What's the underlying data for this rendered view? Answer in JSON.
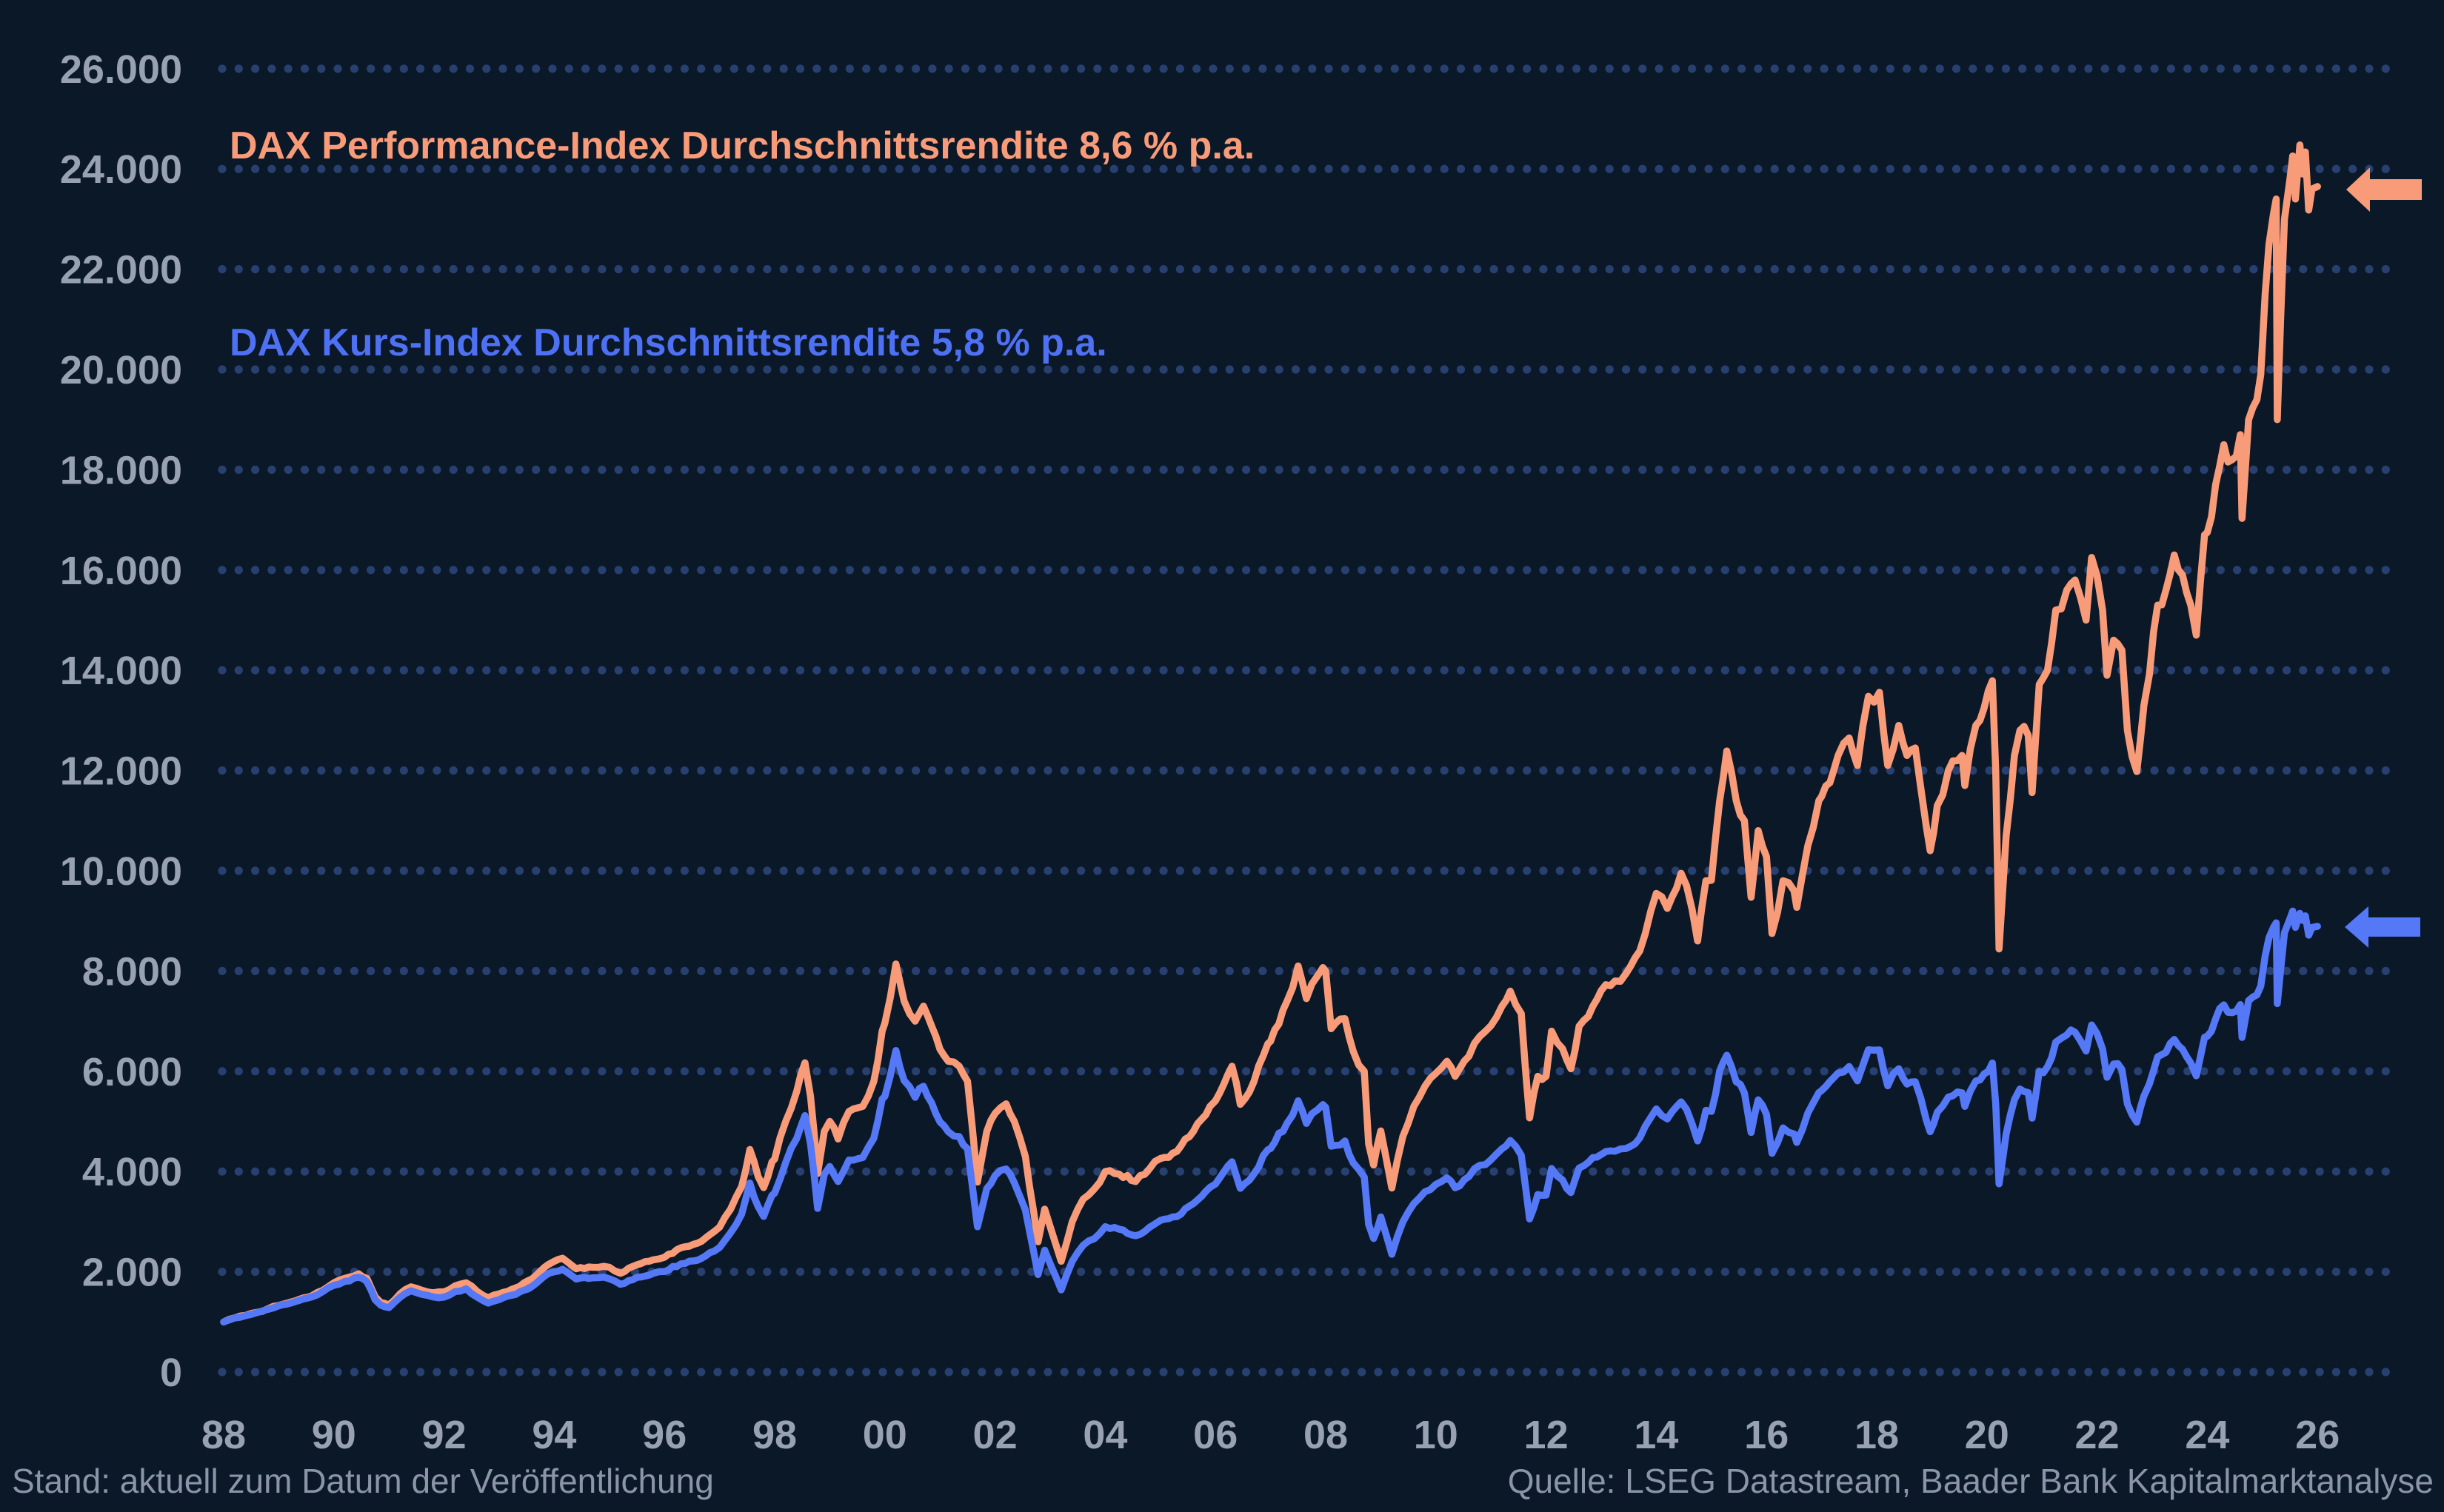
{
  "footer": {
    "left": "Stand: aktuell zum Datum der Veröffentlichung",
    "right": "Quelle: LSEG Datastream, Baader Bank Kapitalmarktanalyse"
  },
  "colors": {
    "background": "#0A1828",
    "grid_dots": "#28406F",
    "tick_text": "#97A1B2",
    "footer_text": "#8A95A7"
  },
  "chart_data": {
    "type": "line",
    "title": "",
    "xlabel": "",
    "ylabel": "",
    "ylim": [
      0,
      26000
    ],
    "x_range": [
      1988,
      2026
    ],
    "grid": "dotted horizontal lines at every 2.000 points",
    "legend_position": "labels inside plot, top-left area",
    "y_tick_labels": [
      "26.000",
      "24.000",
      "22.000",
      "20.000",
      "18.000",
      "16.000",
      "14.000",
      "12.000",
      "10.000",
      "8.000",
      "6.000",
      "4.000",
      "2.000",
      "0"
    ],
    "y_tick_values": [
      26000,
      24000,
      22000,
      20000,
      18000,
      16000,
      14000,
      12000,
      10000,
      8000,
      6000,
      4000,
      2000,
      0
    ],
    "x_tick_labels": [
      "88",
      "90",
      "92",
      "94",
      "96",
      "98",
      "00",
      "02",
      "04",
      "06",
      "08",
      "10",
      "12",
      "14",
      "16",
      "18",
      "20",
      "22",
      "24",
      "26"
    ],
    "x_tick_years": [
      1988,
      1990,
      1992,
      1994,
      1996,
      1998,
      2000,
      2002,
      2004,
      2006,
      2008,
      2010,
      2012,
      2014,
      2016,
      2018,
      2020,
      2022,
      2024,
      2026
    ],
    "series": [
      {
        "id": "performance",
        "label": "DAX Performance-Index Durchschnittsrendite 8,6 % p.a.",
        "avg_return": "8,6 % p.a.",
        "color": "#F89B79",
        "arrow": "left-pointing block arrow at current value ~23.600"
      },
      {
        "id": "kurs",
        "label": "DAX Kurs-Index Durchschnittsrendite 5,8 % p.a.",
        "avg_return": "5,8 % p.a.",
        "color": "#5578F6",
        "arrow": "left-pointing block arrow at current value ~8.900"
      }
    ],
    "points_format": "[year, dax_performance_index, dax_kurs_index]",
    "points": [
      [
        1988.0,
        1000,
        1000
      ],
      [
        1988.2,
        1080,
        1080
      ],
      [
        1988.4,
        1130,
        1125
      ],
      [
        1988.6,
        1190,
        1185
      ],
      [
        1988.8,
        1260,
        1250
      ],
      [
        1989.0,
        1330,
        1320
      ],
      [
        1989.3,
        1420,
        1405
      ],
      [
        1989.6,
        1520,
        1500
      ],
      [
        1989.8,
        1630,
        1605
      ],
      [
        1990.0,
        1780,
        1730
      ],
      [
        1990.2,
        1870,
        1810
      ],
      [
        1990.45,
        1960,
        1890
      ],
      [
        1990.6,
        1870,
        1800
      ],
      [
        1990.75,
        1500,
        1440
      ],
      [
        1990.85,
        1390,
        1335
      ],
      [
        1991.0,
        1340,
        1285
      ],
      [
        1991.2,
        1560,
        1490
      ],
      [
        1991.4,
        1700,
        1620
      ],
      [
        1991.6,
        1630,
        1550
      ],
      [
        1991.8,
        1580,
        1500
      ],
      [
        1992.0,
        1600,
        1495
      ],
      [
        1992.2,
        1720,
        1605
      ],
      [
        1992.4,
        1780,
        1660
      ],
      [
        1992.6,
        1610,
        1495
      ],
      [
        1992.8,
        1480,
        1375
      ],
      [
        1993.0,
        1560,
        1445
      ],
      [
        1993.3,
        1680,
        1550
      ],
      [
        1993.6,
        1860,
        1710
      ],
      [
        1993.9,
        2150,
        1970
      ],
      [
        1994.0,
        2210,
        2000
      ],
      [
        1994.15,
        2270,
        2050
      ],
      [
        1994.4,
        2060,
        1855
      ],
      [
        1994.7,
        2090,
        1880
      ],
      [
        1994.9,
        2110,
        1895
      ],
      [
        1995.0,
        2090,
        1860
      ],
      [
        1995.2,
        1970,
        1750
      ],
      [
        1995.5,
        2140,
        1890
      ],
      [
        1995.8,
        2240,
        1970
      ],
      [
        1996.0,
        2290,
        2005
      ],
      [
        1996.3,
        2480,
        2160
      ],
      [
        1996.6,
        2570,
        2230
      ],
      [
        1996.9,
        2800,
        2410
      ],
      [
        1997.0,
        2890,
        2485
      ],
      [
        1997.2,
        3250,
        2780
      ],
      [
        1997.4,
        3700,
        3150
      ],
      [
        1997.55,
        4440,
        3770
      ],
      [
        1997.7,
        3900,
        3300
      ],
      [
        1997.8,
        3680,
        3105
      ],
      [
        1997.95,
        4190,
        3525
      ],
      [
        1998.0,
        4250,
        3570
      ],
      [
        1998.2,
        5000,
        4180
      ],
      [
        1998.4,
        5600,
        4660
      ],
      [
        1998.55,
        6170,
        5115
      ],
      [
        1998.65,
        5500,
        4550
      ],
      [
        1998.78,
        3960,
        3265
      ],
      [
        1998.9,
        4800,
        3945
      ],
      [
        1999.0,
        5000,
        4100
      ],
      [
        1999.15,
        4650,
        3800
      ],
      [
        1999.35,
        5200,
        4230
      ],
      [
        1999.6,
        5300,
        4280
      ],
      [
        1999.8,
        5800,
        4665
      ],
      [
        1999.95,
        6800,
        5445
      ],
      [
        2000.0,
        6960,
        5500
      ],
      [
        2000.2,
        8140,
        6415
      ],
      [
        2000.35,
        7400,
        5815
      ],
      [
        2000.55,
        7000,
        5480
      ],
      [
        2000.7,
        7300,
        5700
      ],
      [
        2000.85,
        6900,
        5370
      ],
      [
        2001.0,
        6440,
        4990
      ],
      [
        2001.15,
        6200,
        4795
      ],
      [
        2001.35,
        6100,
        4695
      ],
      [
        2001.5,
        5800,
        4455
      ],
      [
        2001.68,
        3790,
        2900
      ],
      [
        2001.85,
        4800,
        3660
      ],
      [
        2002.0,
        5160,
        3920
      ],
      [
        2002.2,
        5350,
        4050
      ],
      [
        2002.35,
        5000,
        3775
      ],
      [
        2002.55,
        4300,
        3235
      ],
      [
        2002.7,
        3200,
        2400
      ],
      [
        2002.78,
        2600,
        1945
      ],
      [
        2002.9,
        3250,
        2430
      ],
      [
        2003.0,
        2900,
        2160
      ],
      [
        2003.2,
        2210,
        1640
      ],
      [
        2003.4,
        3000,
        2210
      ],
      [
        2003.6,
        3450,
        2530
      ],
      [
        2003.8,
        3650,
        2660
      ],
      [
        2004.0,
        4000,
        2900
      ],
      [
        2004.25,
        3950,
        2850
      ],
      [
        2004.55,
        3800,
        2720
      ],
      [
        2004.8,
        4050,
        2885
      ],
      [
        2005.0,
        4260,
        3025
      ],
      [
        2005.3,
        4400,
        3100
      ],
      [
        2005.6,
        4800,
        3360
      ],
      [
        2005.9,
        5300,
        3685
      ],
      [
        2006.0,
        5410,
        3750
      ],
      [
        2006.3,
        6100,
        4195
      ],
      [
        2006.45,
        5340,
        3665
      ],
      [
        2006.7,
        5800,
        3955
      ],
      [
        2006.95,
        6550,
        4435
      ],
      [
        2007.0,
        6600,
        4460
      ],
      [
        2007.3,
        7400,
        4965
      ],
      [
        2007.5,
        8100,
        5410
      ],
      [
        2007.65,
        7450,
        4960
      ],
      [
        2007.85,
        7900,
        5230
      ],
      [
        2007.95,
        8070,
        5335
      ],
      [
        2008.0,
        8000,
        5280
      ],
      [
        2008.1,
        6850,
        4505
      ],
      [
        2008.35,
        7050,
        4610
      ],
      [
        2008.5,
        6400,
        4175
      ],
      [
        2008.7,
        6000,
        3890
      ],
      [
        2008.78,
        4550,
        2945
      ],
      [
        2008.87,
        4130,
        2665
      ],
      [
        2009.0,
        4810,
        3095
      ],
      [
        2009.2,
        3670,
        2350
      ],
      [
        2009.4,
        4700,
        2995
      ],
      [
        2009.6,
        5300,
        3360
      ],
      [
        2009.8,
        5700,
        3595
      ],
      [
        2010.0,
        5960,
        3745
      ],
      [
        2010.2,
        6200,
        3875
      ],
      [
        2010.35,
        5900,
        3675
      ],
      [
        2010.6,
        6300,
        3900
      ],
      [
        2010.8,
        6700,
        4125
      ],
      [
        2011.0,
        6910,
        4235
      ],
      [
        2011.2,
        7300,
        4455
      ],
      [
        2011.35,
        7600,
        4620
      ],
      [
        2011.55,
        7150,
        4325
      ],
      [
        2011.7,
        5070,
        3055
      ],
      [
        2011.85,
        5900,
        3540
      ],
      [
        2012.0,
        5900,
        3530
      ],
      [
        2012.1,
        6800,
        4060
      ],
      [
        2012.3,
        6450,
        3830
      ],
      [
        2012.45,
        6050,
        3580
      ],
      [
        2012.6,
        6900,
        4070
      ],
      [
        2012.85,
        7300,
        4280
      ],
      [
        2013.0,
        7610,
        4340
      ],
      [
        2013.25,
        7800,
        4405
      ],
      [
        2013.45,
        7950,
        4460
      ],
      [
        2013.7,
        8400,
        4670
      ],
      [
        2013.9,
        9200,
        5080
      ],
      [
        2014.0,
        9550,
        5250
      ],
      [
        2014.2,
        9250,
        5050
      ],
      [
        2014.45,
        9950,
        5390
      ],
      [
        2014.55,
        9700,
        5240
      ],
      [
        2014.75,
        8600,
        4610
      ],
      [
        2014.9,
        9800,
        5220
      ],
      [
        2015.0,
        9810,
        5200
      ],
      [
        2015.15,
        11400,
        6010
      ],
      [
        2015.28,
        12390,
        6320
      ],
      [
        2015.45,
        11400,
        5790
      ],
      [
        2015.6,
        11000,
        5565
      ],
      [
        2015.72,
        9470,
        4780
      ],
      [
        2015.85,
        10800,
        5430
      ],
      [
        2016.0,
        10280,
        5140
      ],
      [
        2016.1,
        8750,
        4365
      ],
      [
        2016.3,
        9800,
        4870
      ],
      [
        2016.5,
        9600,
        4750
      ],
      [
        2016.55,
        9270,
        4580
      ],
      [
        2016.75,
        10500,
        5165
      ],
      [
        2016.95,
        11400,
        5575
      ],
      [
        2017.0,
        11480,
        5615
      ],
      [
        2017.3,
        12300,
        5965
      ],
      [
        2017.5,
        12650,
        6095
      ],
      [
        2017.65,
        12100,
        5810
      ],
      [
        2017.85,
        13480,
        6430
      ],
      [
        2018.05,
        13560,
        6425
      ],
      [
        2018.2,
        12100,
        5710
      ],
      [
        2018.4,
        12900,
        6050
      ],
      [
        2018.55,
        12300,
        5745
      ],
      [
        2018.7,
        12450,
        5790
      ],
      [
        2018.9,
        10880,
        5025
      ],
      [
        2018.97,
        10400,
        4795
      ],
      [
        2019.1,
        11300,
        5185
      ],
      [
        2019.3,
        12000,
        5485
      ],
      [
        2019.55,
        12300,
        5570
      ],
      [
        2019.6,
        11700,
        5300
      ],
      [
        2019.8,
        12900,
        5805
      ],
      [
        2019.95,
        13250,
        5950
      ],
      [
        2020.1,
        13790,
        6165
      ],
      [
        2020.16,
        12000,
        5350
      ],
      [
        2020.22,
        8440,
        3755
      ],
      [
        2020.35,
        10700,
        4750
      ],
      [
        2020.5,
        12300,
        5435
      ],
      [
        2020.6,
        12800,
        5645
      ],
      [
        2020.75,
        12700,
        5575
      ],
      [
        2020.82,
        11560,
        5065
      ],
      [
        2020.95,
        13720,
        5995
      ],
      [
        2021.1,
        14000,
        6090
      ],
      [
        2021.25,
        15200,
        6580
      ],
      [
        2021.45,
        15600,
        6725
      ],
      [
        2021.6,
        15800,
        6780
      ],
      [
        2021.8,
        15000,
        6405
      ],
      [
        2021.9,
        16250,
        6925
      ],
      [
        2022.0,
        15880,
        6750
      ],
      [
        2022.1,
        15200,
        6445
      ],
      [
        2022.18,
        13900,
        5880
      ],
      [
        2022.3,
        14600,
        6145
      ],
      [
        2022.45,
        14400,
        6035
      ],
      [
        2022.55,
        12800,
        5350
      ],
      [
        2022.72,
        11980,
        4985
      ],
      [
        2022.85,
        13300,
        5505
      ],
      [
        2022.95,
        13920,
        5750
      ],
      [
        2023.1,
        15300,
        6290
      ],
      [
        2023.25,
        15600,
        6380
      ],
      [
        2023.4,
        16300,
        6635
      ],
      [
        2023.55,
        15900,
        6440
      ],
      [
        2023.7,
        15300,
        6165
      ],
      [
        2023.8,
        14700,
        5910
      ],
      [
        2023.95,
        16700,
        6680
      ],
      [
        2024.0,
        16750,
        6700
      ],
      [
        2024.15,
        17700,
        7045
      ],
      [
        2024.3,
        18500,
        7325
      ],
      [
        2024.45,
        18200,
        7170
      ],
      [
        2024.6,
        18700,
        7330
      ],
      [
        2024.63,
        17030,
        6675
      ],
      [
        2024.75,
        19000,
        7410
      ],
      [
        2024.9,
        19400,
        7525
      ],
      [
        2024.97,
        19900,
        7700
      ],
      [
        2025.05,
        21500,
        8300
      ],
      [
        2025.12,
        22500,
        8665
      ],
      [
        2025.2,
        23100,
        8870
      ],
      [
        2025.25,
        23400,
        8960
      ],
      [
        2025.27,
        19000,
        7350
      ],
      [
        2025.33,
        21000,
        8020
      ],
      [
        2025.4,
        23000,
        8765
      ],
      [
        2025.5,
        23800,
        9045
      ],
      [
        2025.55,
        24260,
        9195
      ],
      [
        2025.6,
        23400,
        8870
      ],
      [
        2025.68,
        24480,
        9150
      ],
      [
        2025.73,
        23900,
        9010
      ],
      [
        2025.78,
        24340,
        9100
      ],
      [
        2025.84,
        23180,
        8715
      ],
      [
        2025.9,
        23600,
        8870
      ],
      [
        2026.0,
        23650,
        8890
      ]
    ]
  }
}
